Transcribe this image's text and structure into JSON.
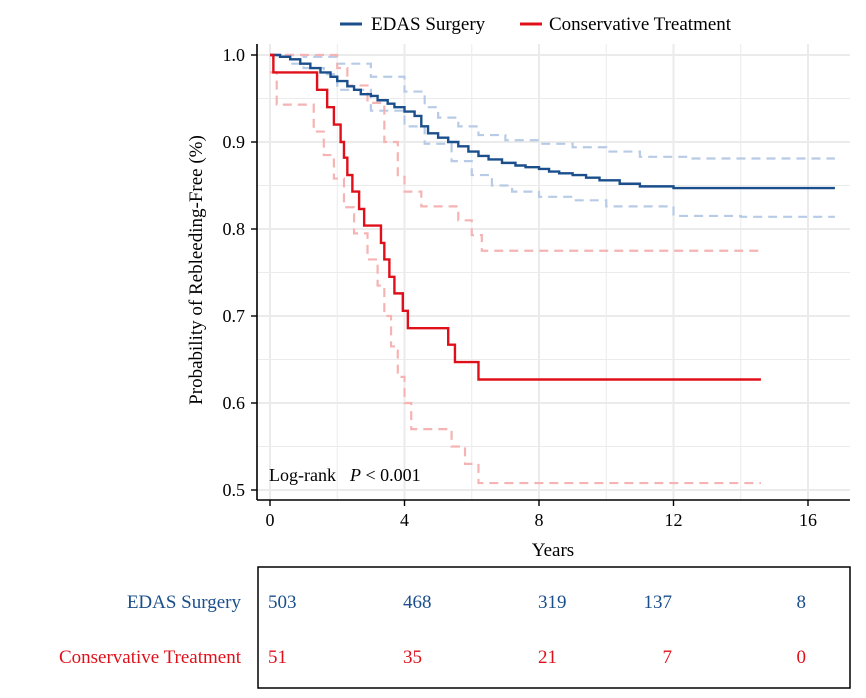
{
  "colors": {
    "edas": "#1a4f8c",
    "conservative": "#e0101a",
    "edas_ci": "#b7cbe6",
    "conservative_ci": "#f6b3b3",
    "grid": "#ebebeb",
    "axis": "#000000"
  },
  "chart_data": {
    "type": "line",
    "subtype": "kaplan-meier survival curve with confidence bands and risk table",
    "ylabel": "Probability of Rebleeding-Free (%)",
    "xlabel": "Years",
    "xlim": [
      0,
      17
    ],
    "ylim": [
      0.5,
      1.0
    ],
    "x_ticks": [
      0,
      4,
      8,
      12,
      16
    ],
    "y_ticks": [
      0.5,
      0.6,
      0.7,
      0.8,
      0.9,
      1.0
    ],
    "x_tick_labels": [
      "0",
      "4",
      "8",
      "12",
      "16"
    ],
    "y_tick_labels": [
      "0.5",
      "0.6",
      "0.7",
      "0.8",
      "0.9",
      "1.0"
    ],
    "grid": true,
    "legend_position": "top",
    "annotation": {
      "prefix": "Log-rank",
      "p_symbol": "P",
      "value": " < 0.001"
    },
    "series": [
      {
        "name": "EDAS Surgery",
        "color_key": "edas",
        "points": [
          [
            0,
            1.0
          ],
          [
            0.3,
            0.998
          ],
          [
            0.6,
            0.995
          ],
          [
            0.9,
            0.99
          ],
          [
            1.2,
            0.985
          ],
          [
            1.5,
            0.98
          ],
          [
            1.8,
            0.975
          ],
          [
            2.0,
            0.97
          ],
          [
            2.3,
            0.964
          ],
          [
            2.5,
            0.96
          ],
          [
            2.7,
            0.955
          ],
          [
            3.0,
            0.953
          ],
          [
            3.2,
            0.948
          ],
          [
            3.5,
            0.944
          ],
          [
            3.7,
            0.94
          ],
          [
            4.0,
            0.935
          ],
          [
            4.3,
            0.93
          ],
          [
            4.5,
            0.918
          ],
          [
            4.7,
            0.91
          ],
          [
            5.0,
            0.905
          ],
          [
            5.3,
            0.9
          ],
          [
            5.6,
            0.895
          ],
          [
            5.9,
            0.889
          ],
          [
            6.2,
            0.884
          ],
          [
            6.5,
            0.88
          ],
          [
            6.9,
            0.876
          ],
          [
            7.3,
            0.873
          ],
          [
            7.6,
            0.871
          ],
          [
            8.0,
            0.869
          ],
          [
            8.3,
            0.866
          ],
          [
            8.6,
            0.864
          ],
          [
            9.0,
            0.862
          ],
          [
            9.4,
            0.859
          ],
          [
            9.8,
            0.856
          ],
          [
            10.4,
            0.852
          ],
          [
            11.0,
            0.849
          ],
          [
            12.0,
            0.847
          ],
          [
            16.8,
            0.847
          ]
        ],
        "ci_upper": [
          [
            0,
            1.0
          ],
          [
            1.0,
            0.998
          ],
          [
            2.0,
            0.99
          ],
          [
            3.0,
            0.975
          ],
          [
            4.0,
            0.958
          ],
          [
            4.6,
            0.94
          ],
          [
            5.0,
            0.928
          ],
          [
            5.6,
            0.918
          ],
          [
            6.2,
            0.908
          ],
          [
            7.0,
            0.902
          ],
          [
            8.0,
            0.898
          ],
          [
            9.0,
            0.894
          ],
          [
            10.0,
            0.889
          ],
          [
            11.0,
            0.883
          ],
          [
            12.5,
            0.881
          ],
          [
            16.8,
            0.881
          ]
        ],
        "ci_lower": [
          [
            0,
            1.0
          ],
          [
            0.6,
            0.99
          ],
          [
            1.0,
            0.985
          ],
          [
            1.6,
            0.978
          ],
          [
            2.0,
            0.96
          ],
          [
            3.0,
            0.936
          ],
          [
            4.0,
            0.918
          ],
          [
            4.6,
            0.898
          ],
          [
            5.4,
            0.878
          ],
          [
            6.0,
            0.862
          ],
          [
            6.6,
            0.85
          ],
          [
            7.2,
            0.843
          ],
          [
            8.0,
            0.837
          ],
          [
            9.0,
            0.833
          ],
          [
            10.0,
            0.826
          ],
          [
            12.0,
            0.815
          ],
          [
            14.0,
            0.814
          ],
          [
            16.8,
            0.814
          ]
        ],
        "at_risk": [
          "503",
          "468",
          "319",
          "137",
          "8"
        ]
      },
      {
        "name": "Conservative Treatment",
        "color_key": "conservative",
        "points": [
          [
            0,
            1.0
          ],
          [
            0.1,
            0.98
          ],
          [
            1.1,
            0.98
          ],
          [
            1.4,
            0.96
          ],
          [
            1.7,
            0.94
          ],
          [
            1.9,
            0.92
          ],
          [
            2.1,
            0.9
          ],
          [
            2.2,
            0.882
          ],
          [
            2.3,
            0.862
          ],
          [
            2.45,
            0.843
          ],
          [
            2.65,
            0.823
          ],
          [
            2.8,
            0.804
          ],
          [
            2.95,
            0.804
          ],
          [
            3.3,
            0.784
          ],
          [
            3.4,
            0.765
          ],
          [
            3.55,
            0.745
          ],
          [
            3.7,
            0.726
          ],
          [
            3.95,
            0.706
          ],
          [
            4.1,
            0.686
          ],
          [
            5.2,
            0.686
          ],
          [
            5.3,
            0.667
          ],
          [
            5.5,
            0.647
          ],
          [
            6.2,
            0.627
          ],
          [
            14.6,
            0.627
          ]
        ],
        "ci_upper": [
          [
            0,
            1.0
          ],
          [
            1.0,
            1.0
          ],
          [
            1.7,
            1.0
          ],
          [
            2.0,
            0.985
          ],
          [
            2.3,
            0.965
          ],
          [
            2.9,
            0.945
          ],
          [
            3.4,
            0.9
          ],
          [
            3.8,
            0.86
          ],
          [
            4.0,
            0.843
          ],
          [
            4.5,
            0.826
          ],
          [
            5.0,
            0.826
          ],
          [
            5.6,
            0.81
          ],
          [
            6.0,
            0.793
          ],
          [
            6.3,
            0.775
          ],
          [
            14.6,
            0.775
          ]
        ],
        "ci_lower": [
          [
            0,
            0.98
          ],
          [
            0.2,
            0.943
          ],
          [
            1.0,
            0.943
          ],
          [
            1.3,
            0.912
          ],
          [
            1.6,
            0.885
          ],
          [
            1.9,
            0.858
          ],
          [
            2.2,
            0.825
          ],
          [
            2.5,
            0.795
          ],
          [
            2.9,
            0.765
          ],
          [
            3.2,
            0.735
          ],
          [
            3.4,
            0.7
          ],
          [
            3.6,
            0.665
          ],
          [
            3.8,
            0.63
          ],
          [
            4.0,
            0.6
          ],
          [
            4.2,
            0.57
          ],
          [
            5.0,
            0.57
          ],
          [
            5.4,
            0.55
          ],
          [
            5.8,
            0.53
          ],
          [
            6.2,
            0.508
          ],
          [
            14.6,
            0.508
          ]
        ],
        "at_risk": [
          "51",
          "35",
          "21",
          "7",
          "0"
        ]
      }
    ],
    "risk_table": {
      "time_points": [
        0,
        4,
        8,
        12,
        16
      ]
    }
  }
}
